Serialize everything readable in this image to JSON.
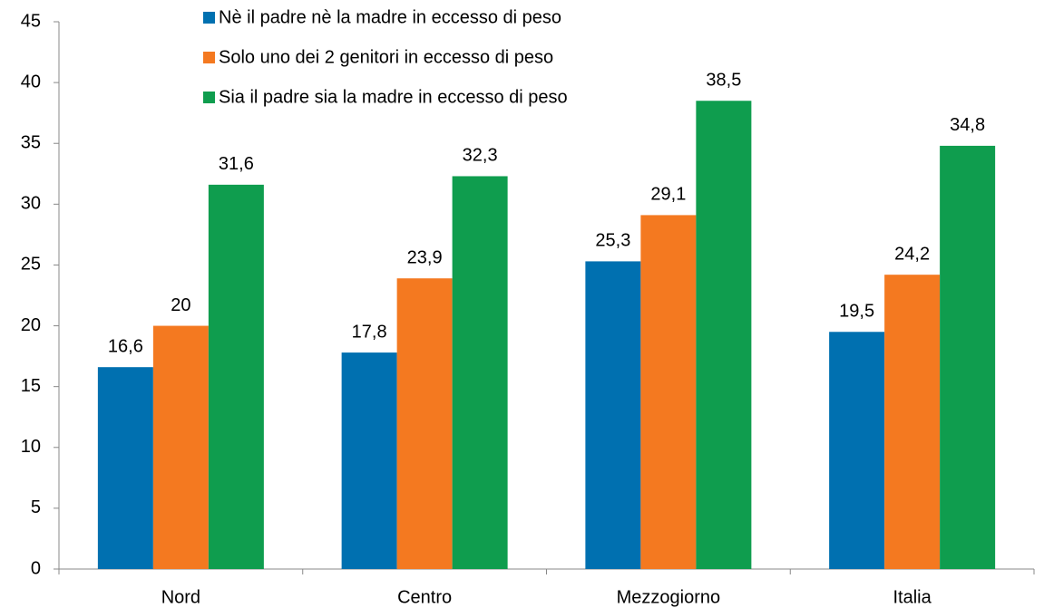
{
  "chart_data": {
    "type": "bar",
    "categories": [
      "Nord",
      "Centro",
      "Mezzogiorno",
      "Italia"
    ],
    "series": [
      {
        "name": "Nè il padre nè la madre in eccesso di peso",
        "color": "#0070b0",
        "values": [
          16.6,
          17.8,
          25.3,
          19.5
        ],
        "value_labels": [
          "16,6",
          "17,8",
          "25,3",
          "19,5"
        ]
      },
      {
        "name": "Solo uno dei 2 genitori in eccesso di peso",
        "color": "#f47920",
        "values": [
          20,
          23.9,
          29.1,
          24.2
        ],
        "value_labels": [
          "20",
          "23,9",
          "29,1",
          "24,2"
        ]
      },
      {
        "name": "Sia il padre sia la madre in eccesso di peso",
        "color": "#0f9d4e",
        "values": [
          31.6,
          32.3,
          38.5,
          34.8
        ],
        "value_labels": [
          "31,6",
          "32,3",
          "38,5",
          "34,8"
        ]
      }
    ],
    "ylim": [
      0,
      45
    ],
    "yticks": [
      0,
      5,
      10,
      15,
      20,
      25,
      30,
      35,
      40,
      45
    ],
    "grid": false
  }
}
